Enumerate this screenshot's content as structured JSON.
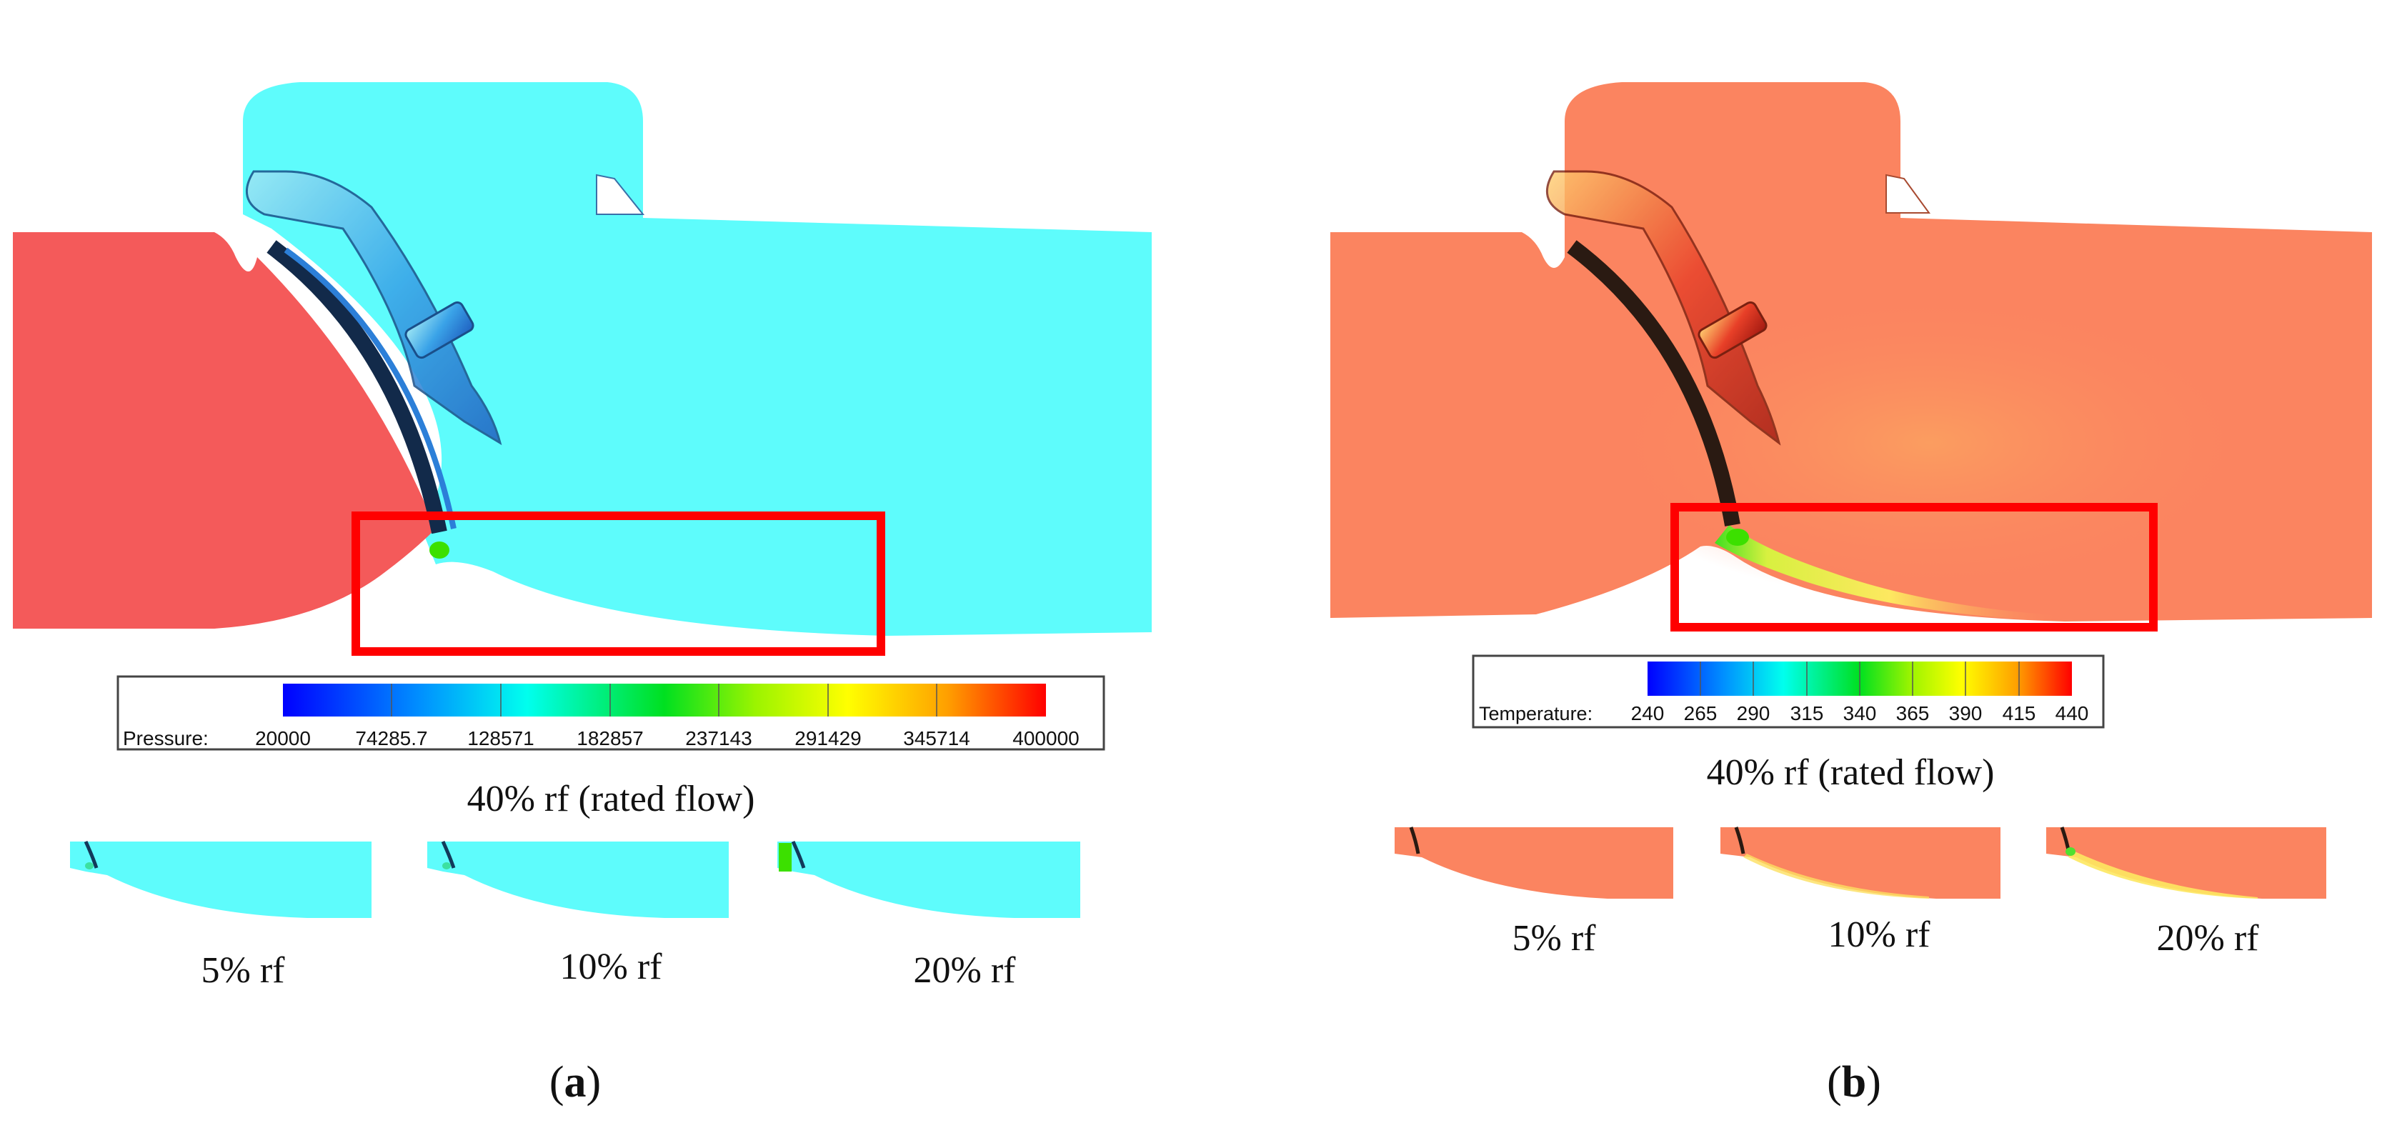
{
  "panel_a": {
    "legend": {
      "title": "Pressure:",
      "ticks": [
        "20000",
        "74285.7",
        "128571",
        "182857",
        "237143",
        "291429",
        "345714",
        "400000"
      ]
    },
    "main_caption": "40% rf (rated flow)",
    "thumbnails": [
      {
        "caption": "5% rf"
      },
      {
        "caption": "10% rf"
      },
      {
        "caption": "20% rf"
      }
    ],
    "panel_label": {
      "open": "(",
      "letter": "a",
      "close": ")"
    },
    "colors": {
      "inlet": "#f45a5a",
      "outlet": "#5efcfc",
      "disc": "#3aa3e8",
      "highlight_box": "#ff0000"
    }
  },
  "panel_b": {
    "legend": {
      "title": "Temperature:",
      "ticks": [
        "240",
        "265",
        "290",
        "315",
        "340",
        "365",
        "390",
        "415",
        "440"
      ]
    },
    "main_caption": "40% rf (rated flow)",
    "thumbnails": [
      {
        "caption": "5% rf"
      },
      {
        "caption": "10% rf"
      },
      {
        "caption": "20% rf"
      }
    ],
    "panel_label": {
      "open": "(",
      "letter": "b",
      "close": ")"
    },
    "colors": {
      "field": "#fb8460",
      "disc": "#e84028",
      "cool_region": "#f7f34a",
      "highlight_box": "#ff0000"
    }
  }
}
